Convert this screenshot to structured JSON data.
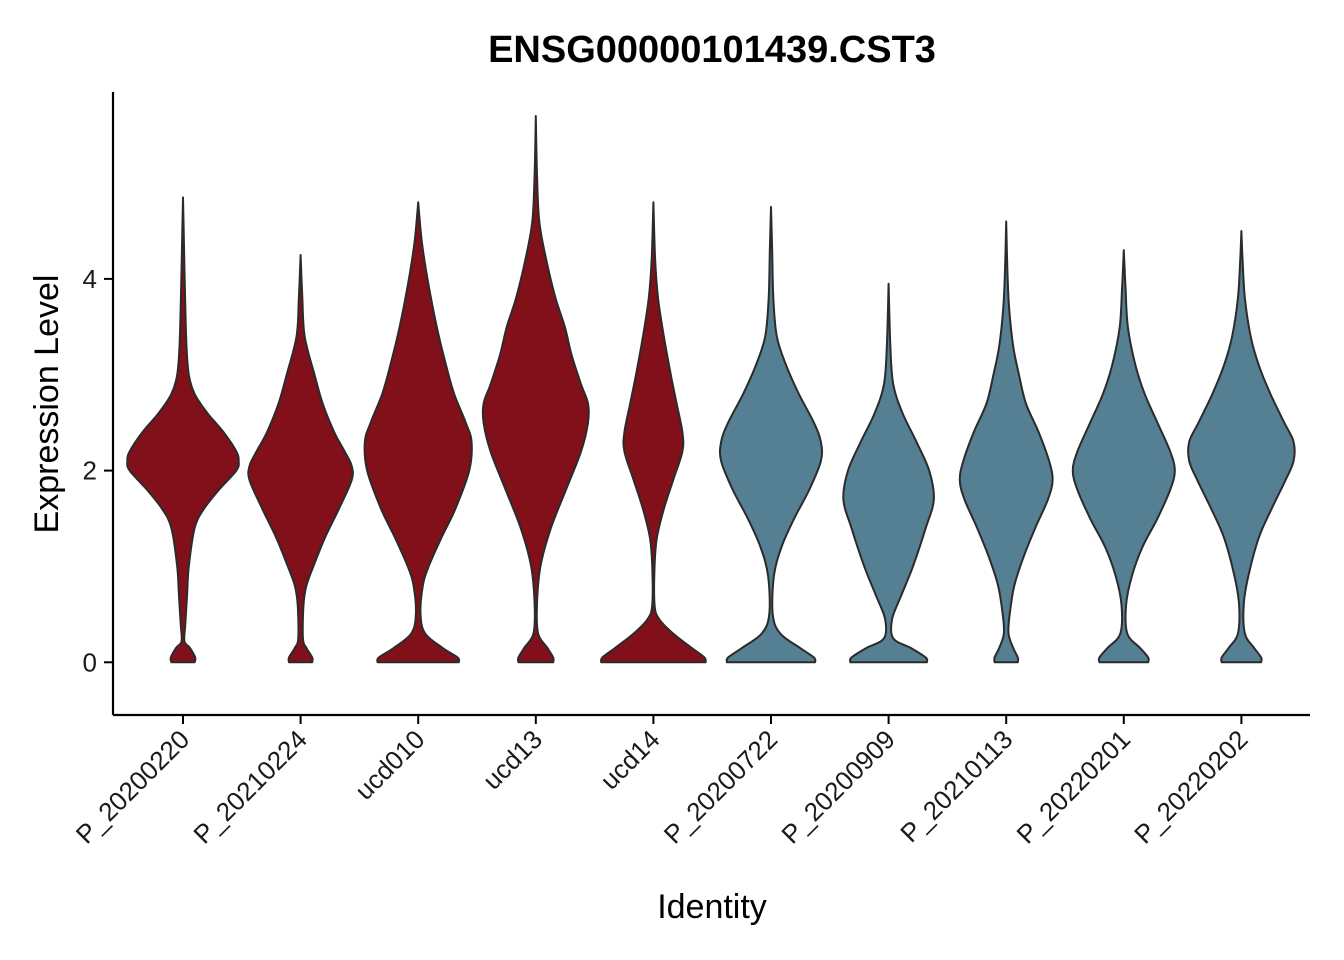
{
  "chart_data": {
    "type": "violin",
    "title": "ENSG00000101439.CST3",
    "xlabel": "Identity",
    "ylabel": "Expression Level",
    "ylim": [
      -0.55,
      5.95
    ],
    "yticks": [
      0,
      2,
      4
    ],
    "grid": false,
    "legend": "none",
    "categories": [
      "P_20200220",
      "P_20210224",
      "ucd010",
      "ucd13",
      "ucd14",
      "P_20200722",
      "P_20200909",
      "P_20210113",
      "P_20220201",
      "P_20220202"
    ],
    "colors": {
      "group_a": "#82101A",
      "group_b": "#557F92"
    },
    "series": [
      {
        "category": "P_20200220",
        "color": "#82101A",
        "max": 4.85,
        "width_profile": [
          [
            0,
            0.2
          ],
          [
            0.05,
            0.21
          ],
          [
            0.15,
            0.12
          ],
          [
            0.22,
            0.025
          ],
          [
            0.4,
            0.04
          ],
          [
            0.7,
            0.07
          ],
          [
            1.0,
            0.1
          ],
          [
            1.4,
            0.2
          ],
          [
            1.6,
            0.36
          ],
          [
            1.8,
            0.62
          ],
          [
            2.0,
            0.92
          ],
          [
            2.1,
            0.96
          ],
          [
            2.2,
            0.92
          ],
          [
            2.4,
            0.7
          ],
          [
            2.6,
            0.42
          ],
          [
            2.8,
            0.2
          ],
          [
            3.0,
            0.1
          ],
          [
            3.3,
            0.06
          ],
          [
            3.7,
            0.04
          ],
          [
            4.1,
            0.025
          ],
          [
            4.5,
            0.012
          ],
          [
            4.85,
            0
          ]
        ]
      },
      {
        "category": "P_20210224",
        "color": "#82101A",
        "max": 4.25,
        "width_profile": [
          [
            0,
            0.2
          ],
          [
            0.05,
            0.2
          ],
          [
            0.15,
            0.1
          ],
          [
            0.25,
            0.04
          ],
          [
            0.6,
            0.05
          ],
          [
            0.8,
            0.1
          ],
          [
            1.0,
            0.22
          ],
          [
            1.3,
            0.42
          ],
          [
            1.6,
            0.66
          ],
          [
            1.9,
            0.88
          ],
          [
            2.05,
            0.88
          ],
          [
            2.2,
            0.76
          ],
          [
            2.4,
            0.58
          ],
          [
            2.7,
            0.38
          ],
          [
            3.0,
            0.24
          ],
          [
            3.4,
            0.07
          ],
          [
            3.8,
            0.03
          ],
          [
            4.25,
            0
          ]
        ]
      },
      {
        "category": "ucd010",
        "color": "#82101A",
        "max": 4.8,
        "width_profile": [
          [
            0,
            0.7
          ],
          [
            0.05,
            0.68
          ],
          [
            0.15,
            0.42
          ],
          [
            0.3,
            0.12
          ],
          [
            0.5,
            0.04
          ],
          [
            0.8,
            0.08
          ],
          [
            1.0,
            0.18
          ],
          [
            1.3,
            0.4
          ],
          [
            1.6,
            0.64
          ],
          [
            2.0,
            0.88
          ],
          [
            2.3,
            0.92
          ],
          [
            2.5,
            0.82
          ],
          [
            2.8,
            0.62
          ],
          [
            3.1,
            0.48
          ],
          [
            3.5,
            0.32
          ],
          [
            4.0,
            0.16
          ],
          [
            4.4,
            0.06
          ],
          [
            4.8,
            0
          ]
        ]
      },
      {
        "category": "ucd13",
        "color": "#82101A",
        "max": 5.7,
        "width_profile": [
          [
            0,
            0.3
          ],
          [
            0.05,
            0.3
          ],
          [
            0.15,
            0.2
          ],
          [
            0.3,
            0.04
          ],
          [
            0.6,
            0.02
          ],
          [
            1.0,
            0.08
          ],
          [
            1.4,
            0.26
          ],
          [
            1.8,
            0.52
          ],
          [
            2.2,
            0.78
          ],
          [
            2.5,
            0.9
          ],
          [
            2.7,
            0.9
          ],
          [
            2.9,
            0.78
          ],
          [
            3.2,
            0.62
          ],
          [
            3.5,
            0.5
          ],
          [
            3.8,
            0.34
          ],
          [
            4.2,
            0.18
          ],
          [
            4.6,
            0.06
          ],
          [
            5.1,
            0.02
          ],
          [
            5.7,
            0
          ]
        ]
      },
      {
        "category": "ucd14",
        "color": "#82101A",
        "max": 4.8,
        "width_profile": [
          [
            0,
            0.9
          ],
          [
            0.05,
            0.88
          ],
          [
            0.15,
            0.66
          ],
          [
            0.3,
            0.34
          ],
          [
            0.45,
            0.1
          ],
          [
            0.6,
            0.02
          ],
          [
            1.0,
            0.02
          ],
          [
            1.3,
            0.06
          ],
          [
            1.6,
            0.18
          ],
          [
            1.9,
            0.34
          ],
          [
            2.2,
            0.5
          ],
          [
            2.4,
            0.5
          ],
          [
            2.7,
            0.4
          ],
          [
            3.0,
            0.3
          ],
          [
            3.4,
            0.18
          ],
          [
            3.8,
            0.08
          ],
          [
            4.2,
            0.03
          ],
          [
            4.8,
            0
          ]
        ]
      },
      {
        "category": "P_20200722",
        "color": "#557F92",
        "max": 4.75,
        "width_profile": [
          [
            0,
            0.76
          ],
          [
            0.05,
            0.74
          ],
          [
            0.15,
            0.5
          ],
          [
            0.3,
            0.16
          ],
          [
            0.5,
            0.03
          ],
          [
            0.9,
            0.05
          ],
          [
            1.2,
            0.18
          ],
          [
            1.5,
            0.4
          ],
          [
            1.8,
            0.66
          ],
          [
            2.1,
            0.86
          ],
          [
            2.3,
            0.86
          ],
          [
            2.5,
            0.74
          ],
          [
            2.8,
            0.48
          ],
          [
            3.1,
            0.26
          ],
          [
            3.4,
            0.1
          ],
          [
            3.8,
            0.04
          ],
          [
            4.3,
            0.02
          ],
          [
            4.75,
            0
          ]
        ]
      },
      {
        "category": "P_20200909",
        "color": "#557F92",
        "max": 3.95,
        "width_profile": [
          [
            0,
            0.66
          ],
          [
            0.05,
            0.64
          ],
          [
            0.15,
            0.38
          ],
          [
            0.25,
            0.08
          ],
          [
            0.45,
            0.06
          ],
          [
            0.7,
            0.22
          ],
          [
            1.0,
            0.42
          ],
          [
            1.4,
            0.64
          ],
          [
            1.7,
            0.78
          ],
          [
            2.0,
            0.7
          ],
          [
            2.3,
            0.48
          ],
          [
            2.6,
            0.24
          ],
          [
            2.9,
            0.08
          ],
          [
            3.3,
            0.03
          ],
          [
            3.95,
            0
          ]
        ]
      },
      {
        "category": "P_20210113",
        "color": "#557F92",
        "max": 4.6,
        "width_profile": [
          [
            0,
            0.2
          ],
          [
            0.05,
            0.2
          ],
          [
            0.15,
            0.12
          ],
          [
            0.3,
            0.04
          ],
          [
            0.5,
            0.06
          ],
          [
            0.8,
            0.14
          ],
          [
            1.1,
            0.3
          ],
          [
            1.4,
            0.5
          ],
          [
            1.7,
            0.72
          ],
          [
            1.9,
            0.8
          ],
          [
            2.1,
            0.74
          ],
          [
            2.4,
            0.56
          ],
          [
            2.7,
            0.34
          ],
          [
            3.0,
            0.22
          ],
          [
            3.3,
            0.12
          ],
          [
            3.7,
            0.05
          ],
          [
            4.1,
            0.02
          ],
          [
            4.6,
            0
          ]
        ]
      },
      {
        "category": "P_20220201",
        "color": "#557F92",
        "max": 4.3,
        "width_profile": [
          [
            0,
            0.42
          ],
          [
            0.05,
            0.42
          ],
          [
            0.15,
            0.28
          ],
          [
            0.3,
            0.06
          ],
          [
            0.6,
            0.04
          ],
          [
            0.9,
            0.14
          ],
          [
            1.2,
            0.32
          ],
          [
            1.5,
            0.58
          ],
          [
            1.8,
            0.8
          ],
          [
            2.0,
            0.88
          ],
          [
            2.2,
            0.8
          ],
          [
            2.5,
            0.58
          ],
          [
            2.8,
            0.36
          ],
          [
            3.1,
            0.2
          ],
          [
            3.5,
            0.07
          ],
          [
            3.9,
            0.03
          ],
          [
            4.3,
            0
          ]
        ]
      },
      {
        "category": "P_20220202",
        "color": "#557F92",
        "max": 4.5,
        "width_profile": [
          [
            0,
            0.34
          ],
          [
            0.05,
            0.34
          ],
          [
            0.15,
            0.22
          ],
          [
            0.3,
            0.06
          ],
          [
            0.6,
            0.04
          ],
          [
            0.9,
            0.12
          ],
          [
            1.3,
            0.3
          ],
          [
            1.6,
            0.52
          ],
          [
            1.9,
            0.76
          ],
          [
            2.1,
            0.9
          ],
          [
            2.3,
            0.9
          ],
          [
            2.5,
            0.74
          ],
          [
            2.8,
            0.5
          ],
          [
            3.1,
            0.3
          ],
          [
            3.4,
            0.16
          ],
          [
            3.8,
            0.06
          ],
          [
            4.2,
            0.02
          ],
          [
            4.5,
            0
          ]
        ]
      }
    ]
  }
}
